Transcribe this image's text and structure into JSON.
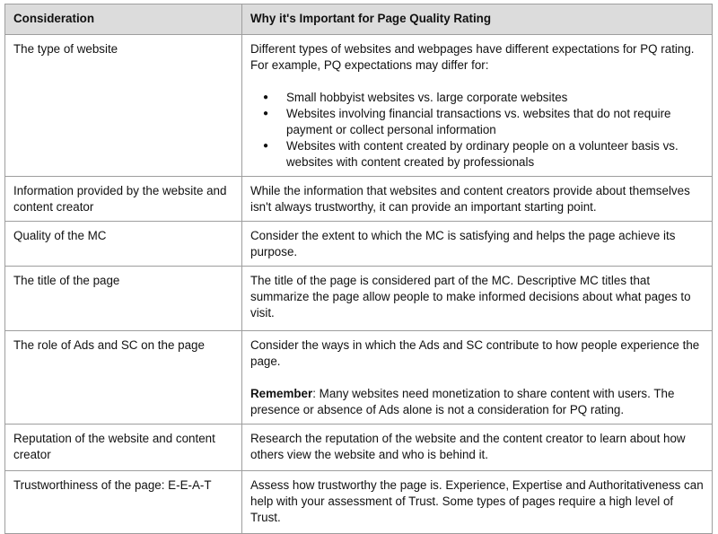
{
  "headers": [
    "Consideration",
    "Why it's Important for Page Quality Rating"
  ],
  "rows": [
    {
      "consideration": "The type of website",
      "intro": "Different types of websites and webpages have different expectations for PQ rating.  For example, PQ expectations may differ for:",
      "bullets": [
        "Small hobbyist websites vs. large corporate websites",
        "Websites involving financial transactions vs. websites that do not require payment or collect personal information",
        "Websites with content created by ordinary people on a volunteer basis vs. websites with content created by professionals"
      ]
    },
    {
      "consideration": "Information provided by the website and content creator",
      "text": "While the information that websites and content creators provide about themselves isn't always trustworthy, it can provide an important starting point."
    },
    {
      "consideration": "Quality of the MC",
      "text": "Consider the extent to which the MC is satisfying and helps the page achieve its purpose."
    },
    {
      "consideration": "The title of the page",
      "text": "The title of the page is considered part of the MC.  Descriptive MC titles that summarize the page allow people to make informed decisions about what pages to visit."
    },
    {
      "consideration": "The role of Ads and SC on the page",
      "text": "Consider the ways in which the Ads and SC contribute to how people experience the page.",
      "remember_label": "Remember",
      "remember_text": ": Many websites need monetization to share content with users. The presence or absence of Ads alone is not a consideration for PQ rating."
    },
    {
      "consideration": "Reputation of the website and content creator",
      "text": "Research the reputation of the website and the content creator to learn about how others view the website and who is behind it."
    },
    {
      "consideration": "Trustworthiness of the page: E-E-A-T",
      "text": "Assess how trustworthy the page is.  Experience, Expertise and Authoritativeness can help with your assessment of Trust.  Some types of pages require a high level of Trust."
    }
  ]
}
